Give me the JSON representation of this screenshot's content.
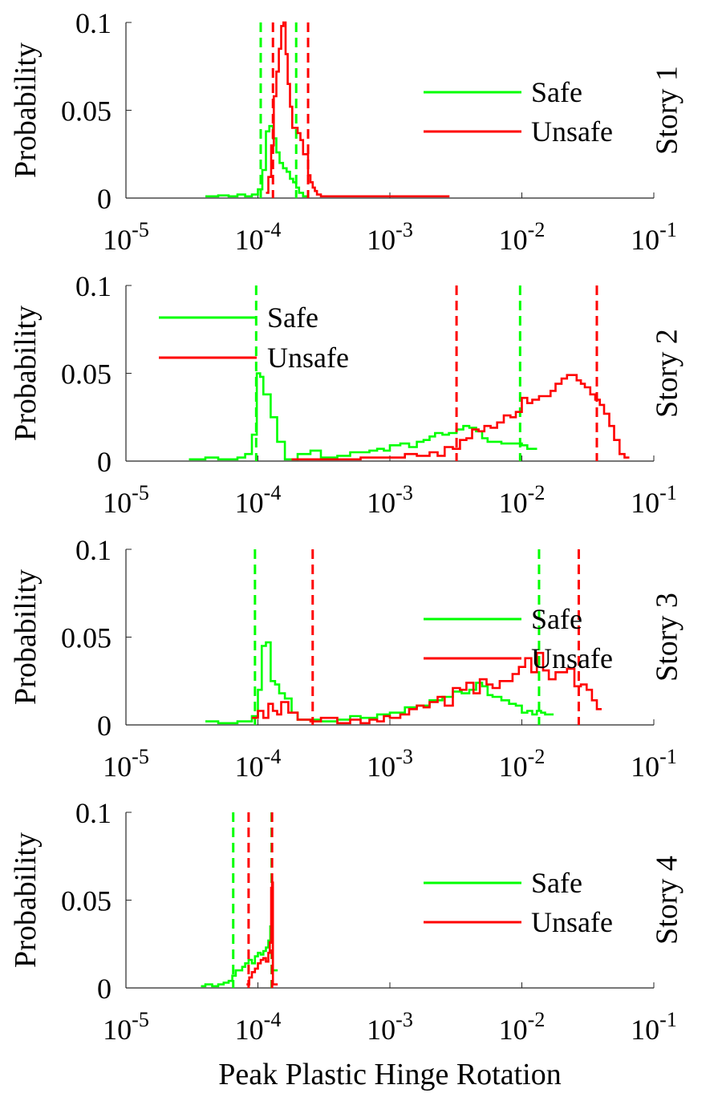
{
  "figure": {
    "xlabel": "Peak Plastic Hinge Rotation",
    "colors": {
      "safe": "#00ff00",
      "unsafe": "#ff0000",
      "axis": "#262626"
    }
  },
  "chart_data": [
    {
      "type": "line",
      "drawstyle": "steps",
      "xscale": "log",
      "xlim": [
        1e-05,
        0.1
      ],
      "ylim": [
        0,
        0.1
      ],
      "xtick_bases": [
        "10",
        "10",
        "10",
        "10",
        "10"
      ],
      "xtick_exps": [
        "-5",
        "-4",
        "-3",
        "-2",
        "-1"
      ],
      "ytick_labels": [
        "0",
        "0.05",
        "0.1"
      ],
      "ytick_values": [
        0,
        0.05,
        0.1
      ],
      "ylabel": "Probability",
      "side_label": "Story 1",
      "legend": {
        "position": "upper-right",
        "entries": [
          "Safe",
          "Unsafe"
        ]
      },
      "series": [
        {
          "name": "Safe",
          "color": "#00ff00",
          "vlines": [
            0.000105,
            0.000195
          ],
          "x": [
            4e-05,
            5e-05,
            6e-05,
            7e-05,
            8e-05,
            9e-05,
            0.0001,
            0.000108,
            0.000115,
            0.000122,
            0.00013,
            0.000138,
            0.000146,
            0.000155,
            0.000165,
            0.000175,
            0.000185,
            0.000195,
            0.000205,
            0.00022
          ],
          "y": [
            0.001,
            0.0015,
            0.001,
            0.002,
            0.001,
            0.002,
            0.005,
            0.016,
            0.038,
            0.041,
            0.034,
            0.026,
            0.02,
            0.017,
            0.015,
            0.011,
            0.009,
            0.006,
            0.003,
            0.001
          ]
        },
        {
          "name": "Unsafe",
          "color": "#ff0000",
          "vlines": [
            0.00013,
            0.00024
          ],
          "x": [
            0.000115,
            0.00012,
            0.000126,
            0.000132,
            0.000138,
            0.000144,
            0.00015,
            0.000156,
            0.000162,
            0.000168,
            0.000175,
            0.000182,
            0.00019,
            0.0002,
            0.00021,
            0.00022,
            0.00023,
            0.00024,
            0.00025,
            0.00026,
            0.00027,
            0.00028,
            0.0003,
            0.0005,
            0.0008,
            0.0012,
            0.0018,
            0.0026
          ],
          "y": [
            0.003,
            0.012,
            0.03,
            0.058,
            0.072,
            0.085,
            0.098,
            0.1,
            0.082,
            0.065,
            0.052,
            0.04,
            0.04,
            0.037,
            0.033,
            0.025,
            0.025,
            0.013,
            0.009,
            0.006,
            0.004,
            0.002,
            0.001,
            0.001,
            0.001,
            0.001,
            0.001,
            0.001
          ]
        }
      ]
    },
    {
      "type": "line",
      "drawstyle": "steps",
      "xscale": "log",
      "xlim": [
        1e-05,
        0.1
      ],
      "ylim": [
        0,
        0.1
      ],
      "xtick_bases": [
        "10",
        "10",
        "10",
        "10",
        "10"
      ],
      "xtick_exps": [
        "-5",
        "-4",
        "-3",
        "-2",
        "-1"
      ],
      "ytick_labels": [
        "0",
        "0.05",
        "0.1"
      ],
      "ytick_values": [
        0,
        0.05,
        0.1
      ],
      "ylabel": "Probability",
      "side_label": "Story 2",
      "legend": {
        "position": "upper-left",
        "entries": [
          "Safe",
          "Unsafe"
        ]
      },
      "series": [
        {
          "name": "Safe",
          "color": "#00ff00",
          "vlines": [
            9.7e-05,
            0.0097
          ],
          "x": [
            3e-05,
            4e-05,
            5e-05,
            6e-05,
            7e-05,
            8e-05,
            9e-05,
            9.8e-05,
            0.000104,
            0.00011,
            0.000125,
            0.00014,
            0.00016,
            0.00018,
            0.0002,
            0.00025,
            0.0003,
            0.0004,
            0.0005,
            0.0006,
            0.0007,
            0.0008,
            0.0009,
            0.001,
            0.0012,
            0.0014,
            0.0016,
            0.0018,
            0.002,
            0.0022,
            0.0025,
            0.0028,
            0.0032,
            0.0036,
            0.004,
            0.0045,
            0.005,
            0.0055,
            0.006,
            0.007,
            0.008,
            0.009,
            0.01,
            0.011,
            0.012
          ],
          "y": [
            0.001,
            0.002,
            0.001,
            0.001,
            0.002,
            0.004,
            0.015,
            0.05,
            0.048,
            0.038,
            0.025,
            0.011,
            0.001,
            0.001,
            0.004,
            0.006,
            0.002,
            0.003,
            0.005,
            0.005,
            0.006,
            0.007,
            0.006,
            0.009,
            0.01,
            0.008,
            0.011,
            0.012,
            0.014,
            0.016,
            0.015,
            0.016,
            0.018,
            0.02,
            0.019,
            0.017,
            0.013,
            0.011,
            0.011,
            0.01,
            0.01,
            0.01,
            0.009,
            0.007,
            0.007
          ]
        },
        {
          "name": "Unsafe",
          "color": "#ff0000",
          "vlines": [
            0.0032,
            0.037
          ],
          "x": [
            0.00018,
            0.00025,
            0.0004,
            0.0006,
            0.0008,
            0.001,
            0.0013,
            0.0016,
            0.002,
            0.0023,
            0.0026,
            0.003,
            0.0034,
            0.0038,
            0.0042,
            0.0047,
            0.0052,
            0.0058,
            0.0065,
            0.0073,
            0.0082,
            0.009,
            0.01,
            0.011,
            0.012,
            0.0135,
            0.015,
            0.0165,
            0.018,
            0.02,
            0.022,
            0.024,
            0.026,
            0.028,
            0.03,
            0.033,
            0.036,
            0.039,
            0.042,
            0.046,
            0.05,
            0.055,
            0.06
          ],
          "y": [
            0.001,
            0.001,
            0.001,
            0.002,
            0.002,
            0.002,
            0.004,
            0.003,
            0.005,
            0.003,
            0.008,
            0.007,
            0.012,
            0.013,
            0.018,
            0.017,
            0.02,
            0.019,
            0.022,
            0.026,
            0.025,
            0.028,
            0.036,
            0.033,
            0.035,
            0.037,
            0.037,
            0.04,
            0.044,
            0.047,
            0.049,
            0.049,
            0.046,
            0.044,
            0.042,
            0.038,
            0.035,
            0.032,
            0.027,
            0.02,
            0.012,
            0.004,
            0.002
          ]
        }
      ]
    },
    {
      "type": "line",
      "drawstyle": "steps",
      "xscale": "log",
      "xlim": [
        1e-05,
        0.1
      ],
      "ylim": [
        0,
        0.1
      ],
      "xtick_bases": [
        "10",
        "10",
        "10",
        "10",
        "10"
      ],
      "xtick_exps": [
        "-5",
        "-4",
        "-3",
        "-2",
        "-1"
      ],
      "ytick_labels": [
        "0",
        "0.05",
        "0.1"
      ],
      "ytick_values": [
        0,
        0.05,
        0.1
      ],
      "ylabel": "Probability",
      "side_label": "Story 3",
      "legend": {
        "position": "upper-right",
        "entries": [
          "Safe",
          "Unsafe"
        ]
      },
      "series": [
        {
          "name": "Safe",
          "color": "#00ff00",
          "vlines": [
            9.5e-05,
            0.0135
          ],
          "x": [
            4e-05,
            5e-05,
            6e-05,
            7e-05,
            8e-05,
            9e-05,
            0.0001,
            0.000107,
            0.000115,
            0.000125,
            0.000135,
            0.000145,
            0.00016,
            0.00018,
            0.0002,
            0.00025,
            0.0003,
            0.0004,
            0.0005,
            0.0006,
            0.0008,
            0.001,
            0.0013,
            0.0016,
            0.002,
            0.0025,
            0.003,
            0.0035,
            0.004,
            0.0045,
            0.005,
            0.0055,
            0.006,
            0.007,
            0.008,
            0.009,
            0.01,
            0.011,
            0.012,
            0.013,
            0.014,
            0.015,
            0.016
          ],
          "y": [
            0.002,
            0.001,
            0.001,
            0.002,
            0.002,
            0.005,
            0.02,
            0.045,
            0.047,
            0.025,
            0.023,
            0.018,
            0.015,
            0.007,
            0.003,
            0.003,
            0.002,
            0.003,
            0.005,
            0.004,
            0.006,
            0.007,
            0.01,
            0.011,
            0.014,
            0.016,
            0.019,
            0.018,
            0.02,
            0.024,
            0.022,
            0.017,
            0.016,
            0.014,
            0.012,
            0.011,
            0.007,
            0.008,
            0.006,
            0.008,
            0.007,
            0.006,
            0.006
          ]
        },
        {
          "name": "Unsafe",
          "color": "#ff0000",
          "vlines": [
            0.00026,
            0.027
          ],
          "x": [
            9e-05,
            0.0001,
            0.00011,
            0.00012,
            0.00013,
            0.00014,
            0.00015,
            0.00017,
            0.0002,
            0.00025,
            0.0003,
            0.0004,
            0.0005,
            0.0006,
            0.0007,
            0.0008,
            0.0009,
            0.001,
            0.0012,
            0.0014,
            0.0016,
            0.0018,
            0.002,
            0.0023,
            0.0026,
            0.003,
            0.0034,
            0.0038,
            0.0043,
            0.0048,
            0.0054,
            0.006,
            0.0068,
            0.0076,
            0.0085,
            0.0095,
            0.0106,
            0.0118,
            0.013,
            0.0145,
            0.016,
            0.018,
            0.02,
            0.022,
            0.025,
            0.028,
            0.031,
            0.034,
            0.037
          ],
          "y": [
            0.004,
            0.008,
            0.004,
            0.012,
            0.008,
            0.006,
            0.013,
            0.007,
            0.003,
            0.002,
            0.004,
            0.001,
            0.003,
            0.001,
            0.003,
            0.002,
            0.005,
            0.004,
            0.006,
            0.009,
            0.011,
            0.01,
            0.013,
            0.016,
            0.011,
            0.021,
            0.02,
            0.024,
            0.018,
            0.026,
            0.023,
            0.021,
            0.025,
            0.025,
            0.029,
            0.033,
            0.038,
            0.03,
            0.041,
            0.031,
            0.026,
            0.03,
            0.03,
            0.032,
            0.022,
            0.023,
            0.02,
            0.014,
            0.009
          ]
        }
      ]
    },
    {
      "type": "line",
      "drawstyle": "steps",
      "xscale": "log",
      "xlim": [
        1e-05,
        0.1
      ],
      "ylim": [
        0,
        0.1
      ],
      "xtick_bases": [
        "10",
        "10",
        "10",
        "10",
        "10"
      ],
      "xtick_exps": [
        "-5",
        "-4",
        "-3",
        "-2",
        "-1"
      ],
      "ytick_labels": [
        "0",
        "0.05",
        "0.1"
      ],
      "ytick_values": [
        0,
        0.05,
        0.1
      ],
      "ylabel": "Probability",
      "side_label": "Story 4",
      "legend": {
        "position": "right",
        "entries": [
          "Safe",
          "Unsafe"
        ]
      },
      "series": [
        {
          "name": "Safe",
          "color": "#00ff00",
          "vlines": [
            6.5e-05,
            0.000127
          ],
          "x": [
            3.7e-05,
            4e-05,
            4.5e-05,
            5e-05,
            5.5e-05,
            6e-05,
            6.4e-05,
            6.8e-05,
            7.2e-05,
            7.6e-05,
            8e-05,
            8.5e-05,
            9e-05,
            9.5e-05,
            0.0001,
            0.000105,
            0.00011,
            0.000115,
            0.00012,
            0.000124,
            0.000127,
            0.00013
          ],
          "y": [
            0.001,
            0.002,
            0.001,
            0.002,
            0.003,
            0.004,
            0.007,
            0.01,
            0.01,
            0.012,
            0.014,
            0.016,
            0.014,
            0.018,
            0.02,
            0.019,
            0.021,
            0.023,
            0.027,
            0.035,
            0.045,
            0.01
          ]
        },
        {
          "name": "Unsafe",
          "color": "#ff0000",
          "vlines": [
            8.5e-05,
            0.000128
          ],
          "x": [
            8.2e-05,
            8.6e-05,
            9e-05,
            9.5e-05,
            0.0001,
            0.000105,
            0.00011,
            0.000115,
            0.00012,
            0.000123,
            0.000126,
            0.000128,
            0.00013
          ],
          "y": [
            0.002,
            0.006,
            0.009,
            0.011,
            0.014,
            0.016,
            0.017,
            0.015,
            0.02,
            0.026,
            0.057,
            0.06,
            0.002
          ]
        }
      ]
    }
  ]
}
